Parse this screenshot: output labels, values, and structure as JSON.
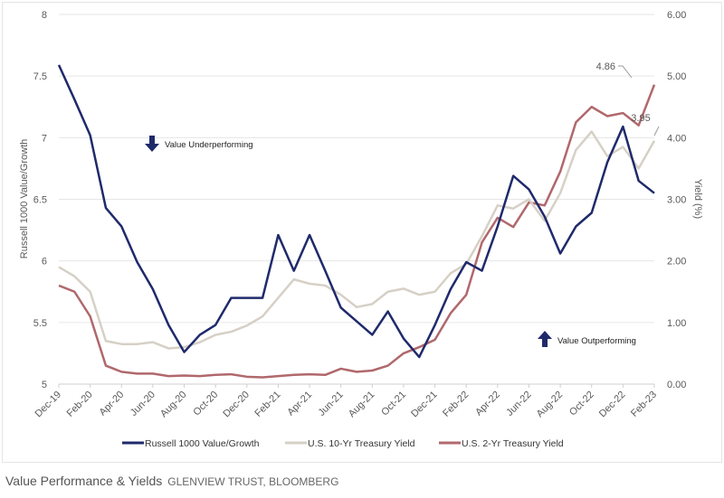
{
  "chart_data": {
    "type": "line",
    "x": [
      "Dec-19",
      "Jan-20",
      "Feb-20",
      "Mar-20",
      "Apr-20",
      "May-20",
      "Jun-20",
      "Jul-20",
      "Aug-20",
      "Sep-20",
      "Oct-20",
      "Nov-20",
      "Dec-20",
      "Jan-21",
      "Feb-21",
      "Mar-21",
      "Apr-21",
      "May-21",
      "Jun-21",
      "Jul-21",
      "Aug-21",
      "Sep-21",
      "Oct-21",
      "Nov-21",
      "Dec-21",
      "Jan-22",
      "Feb-22",
      "Mar-22",
      "Apr-22",
      "May-22",
      "Jun-22",
      "Jul-22",
      "Aug-22",
      "Sep-22",
      "Oct-22",
      "Nov-22",
      "Dec-22",
      "Jan-23",
      "Feb-23"
    ],
    "xticks": [
      "Dec-19",
      "Feb-20",
      "Apr-20",
      "Jun-20",
      "Aug-20",
      "Oct-20",
      "Dec-20",
      "Feb-21",
      "Apr-21",
      "Jun-21",
      "Aug-21",
      "Oct-21",
      "Dec-21",
      "Feb-22",
      "Apr-22",
      "Jun-22",
      "Aug-22",
      "Oct-22",
      "Dec-22",
      "Feb-23"
    ],
    "ylabel": "Russell 1000 Value/Growth",
    "ylim": [
      5,
      8
    ],
    "yticks": [
      "8",
      "7.5",
      "7",
      "6.5",
      "6",
      "5.5",
      "5"
    ],
    "y2label": "Yield (%)",
    "y2lim": [
      0,
      6
    ],
    "y2ticks": [
      "6.00",
      "5.00",
      "4.00",
      "3.00",
      "2.00",
      "1.00",
      "0.00"
    ],
    "grid": true,
    "legend": "bottom",
    "series": [
      {
        "name": "Russell 1000 Value/Growth",
        "axis": "left",
        "color": "#1f2a6b",
        "values": [
          7.59,
          7.31,
          7.02,
          6.43,
          6.28,
          5.99,
          5.77,
          5.48,
          5.26,
          5.4,
          5.48,
          5.7,
          5.7,
          5.7,
          6.21,
          5.92,
          6.21,
          5.92,
          5.62,
          5.51,
          5.4,
          5.59,
          5.37,
          5.22,
          5.48,
          5.77,
          5.99,
          5.92,
          6.28,
          6.69,
          6.58,
          6.36,
          6.06,
          6.28,
          6.39,
          6.8,
          7.09,
          6.65,
          6.55
        ]
      },
      {
        "name": "U.S. 10-Yr Treasury Yield",
        "axis": "right",
        "color": "#d6d0c6",
        "values": [
          1.9,
          1.75,
          1.5,
          0.7,
          0.65,
          0.65,
          0.68,
          0.58,
          0.6,
          0.68,
          0.8,
          0.85,
          0.95,
          1.1,
          1.4,
          1.7,
          1.63,
          1.6,
          1.45,
          1.25,
          1.3,
          1.5,
          1.55,
          1.45,
          1.5,
          1.8,
          1.95,
          2.4,
          2.9,
          2.85,
          3.0,
          2.65,
          3.1,
          3.8,
          4.1,
          3.7,
          3.85,
          3.5,
          3.95
        ]
      },
      {
        "name": "U.S. 2-Yr Treasury Yield",
        "axis": "right",
        "color": "#b0686c",
        "values": [
          1.6,
          1.5,
          1.1,
          0.3,
          0.2,
          0.17,
          0.17,
          0.13,
          0.14,
          0.13,
          0.15,
          0.16,
          0.12,
          0.11,
          0.13,
          0.15,
          0.16,
          0.15,
          0.25,
          0.2,
          0.22,
          0.3,
          0.5,
          0.6,
          0.72,
          1.15,
          1.45,
          2.3,
          2.7,
          2.55,
          2.95,
          2.9,
          3.45,
          4.25,
          4.5,
          4.35,
          4.4,
          4.2,
          4.86
        ]
      }
    ],
    "annotations": {
      "underperforming": "Value Underperforming",
      "outperforming": "Value Outperforming",
      "last_2yr": "4.86",
      "last_10yr": "3.95"
    }
  },
  "caption": {
    "title": "Value Performance & Yields",
    "source": "GLENVIEW TRUST, BLOOMBERG"
  }
}
